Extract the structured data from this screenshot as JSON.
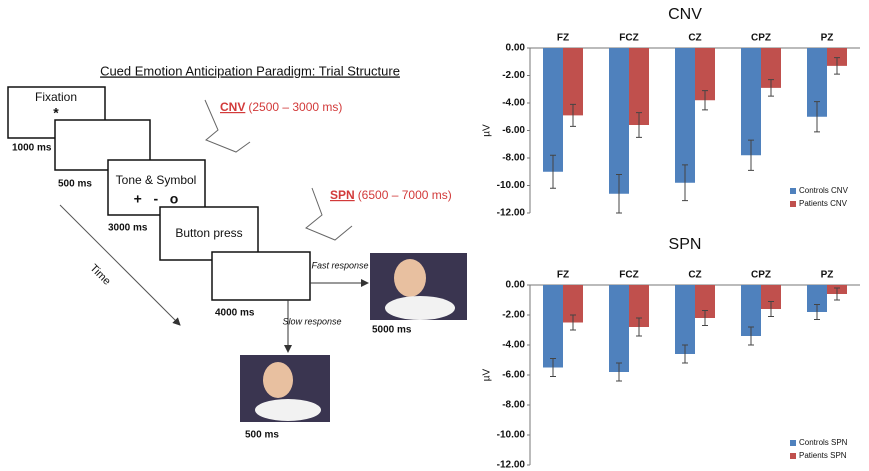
{
  "diagram": {
    "title": "Cued Emotion Anticipation Paradigm: Trial Structure",
    "boxes": [
      {
        "label": "Fixation",
        "symbol": "*",
        "duration": "1000 ms"
      },
      {
        "duration": "500 ms"
      },
      {
        "label": "Tone & Symbol",
        "symbol": "+   -   o",
        "duration": "3000 ms"
      },
      {
        "label": "Button press"
      },
      {
        "duration": "4000 ms"
      }
    ],
    "cnv": {
      "name": "CNV",
      "range": "(2500 – 3000 ms)"
    },
    "spn": {
      "name": "SPN",
      "range": "(6500 – 7000 ms)"
    },
    "time": "Time",
    "fast": {
      "label": "Fast response",
      "duration": "5000 ms"
    },
    "slow": {
      "label": "Slow response",
      "duration": "500 ms"
    }
  },
  "chart_data": [
    {
      "type": "bar",
      "title": "CNV",
      "y_label": "µV",
      "categories": [
        "FZ",
        "FCZ",
        "CZ",
        "CPZ",
        "PZ"
      ],
      "series": [
        {
          "name": "Controls CNV",
          "color": "#4f81bd",
          "values": [
            -9.0,
            -10.6,
            -9.8,
            -7.8,
            -5.0
          ],
          "errors": [
            1.2,
            1.4,
            1.3,
            1.1,
            1.1
          ]
        },
        {
          "name": "Patients CNV",
          "color": "#c0504d",
          "values": [
            -4.9,
            -5.6,
            -3.8,
            -2.9,
            -1.3
          ],
          "errors": [
            0.8,
            0.9,
            0.7,
            0.6,
            0.6
          ]
        }
      ],
      "ylim": [
        0,
        -12
      ],
      "yticks": [
        {
          "value": 0,
          "label": "0.00"
        },
        {
          "value": -2,
          "label": "-2.00"
        },
        {
          "value": -4,
          "label": "-4.00"
        },
        {
          "value": -6,
          "label": "-6.00"
        },
        {
          "value": -8,
          "label": "-8.00"
        },
        {
          "value": -10,
          "label": "-10.00"
        },
        {
          "value": -12,
          "label": "-12.00"
        }
      ],
      "legend": "bottom-right"
    },
    {
      "type": "bar",
      "title": "SPN",
      "y_label": "µV",
      "categories": [
        "FZ",
        "FCZ",
        "CZ",
        "CPZ",
        "PZ"
      ],
      "series": [
        {
          "name": "Controls SPN",
          "color": "#4f81bd",
          "values": [
            -5.5,
            -5.8,
            -4.6,
            -3.4,
            -1.8
          ],
          "errors": [
            0.6,
            0.6,
            0.6,
            0.6,
            0.5
          ]
        },
        {
          "name": "Patients SPN",
          "color": "#c0504d",
          "values": [
            -2.5,
            -2.8,
            -2.2,
            -1.6,
            -0.6
          ],
          "errors": [
            0.5,
            0.6,
            0.5,
            0.5,
            0.4
          ]
        }
      ],
      "ylim": [
        0,
        -12
      ],
      "yticks": [
        {
          "value": 0,
          "label": "0.00"
        },
        {
          "value": -2,
          "label": "-2.00"
        },
        {
          "value": -4,
          "label": "-4.00"
        },
        {
          "value": -6,
          "label": "-6.00"
        },
        {
          "value": -8,
          "label": "-8.00"
        },
        {
          "value": -10,
          "label": "-10.00"
        },
        {
          "value": -12,
          "label": "-12.00"
        }
      ],
      "legend": "bottom-right"
    }
  ]
}
